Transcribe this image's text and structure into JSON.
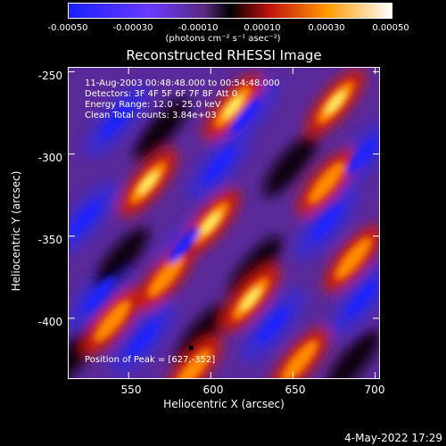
{
  "colorbar": {
    "ticks": [
      "-0.00050",
      "-0.00030",
      "-0.00010",
      "0.00010",
      "0.00030",
      "0.00050"
    ],
    "unit": "(photons cm⁻² s⁻¹ asec⁻²)"
  },
  "info": {
    "line1": "11-Aug-2003 00:48:48.000 to 00:54:48.000",
    "line2": "Detectors: 3F 4F 5F 6F 7F 8F  Att 0",
    "line3": "Energy Range: 12.0 - 25.0 keV",
    "line4": "Clean    Total counts: 3.84e+03",
    "peak": "Position of Peak = [627,-352]"
  },
  "footer": {
    "timestamp": "4-May-2022 17:29"
  },
  "chart_data": {
    "type": "heatmap",
    "title": "Reconstructed RHESSI Image",
    "xlabel": "Heliocentric X (arcsec)",
    "ylabel": "Heliocentric Y (arcsec)",
    "xlim": [
      513,
      703
    ],
    "ylim": [
      -437,
      -247
    ],
    "xticks": [
      550,
      600,
      650,
      700
    ],
    "yticks": [
      -250,
      -300,
      -350,
      -400
    ],
    "colorbar_range": [
      -0.0005,
      0.0005
    ],
    "peak": [
      627,
      -352
    ],
    "colors": {
      "neg": "#2a1cff",
      "zero": "#000000",
      "pos": "#ffffff"
    }
  }
}
